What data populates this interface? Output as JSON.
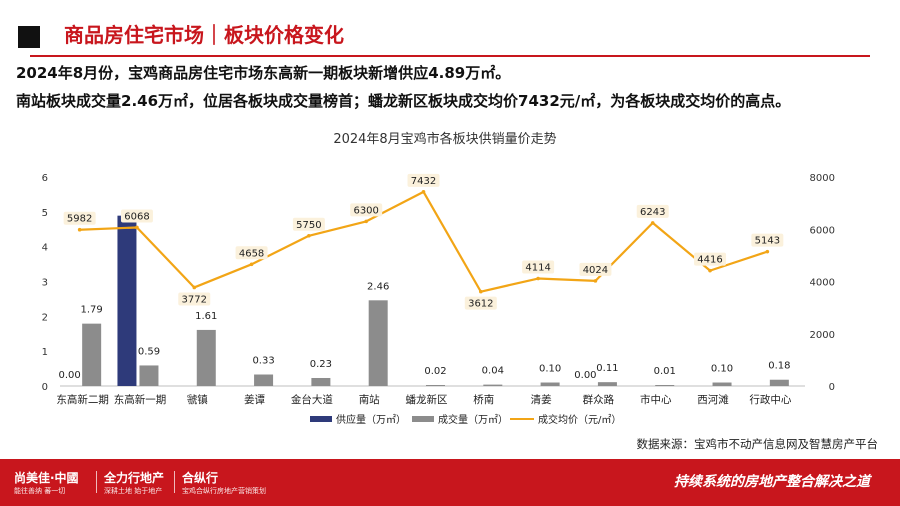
{
  "header": {
    "title": "商品房住宅市场｜板块价格变化"
  },
  "summary": {
    "line1": "2024年8月份，宝鸡商品房住宅市场东高新一期板块新增供应4.89万㎡。",
    "line2": "南站板块成交量2.46万㎡，位居各板块成交量榜首；蟠龙新区板块成交均价7432元/㎡，为各板块成交均价的高点。"
  },
  "source": "数据来源：宝鸡市不动产信息网及智慧房产平台",
  "footer": {
    "brand1": "尚美佳·中國",
    "brand1_sub": "能往善纳 蕃一切",
    "brand2": "全力行地产",
    "brand2_sub": "深耕土地 始于地产",
    "brand3": "合纵行",
    "brand3_sub": "宝鸡合纵行房地产营销策划",
    "slogan": "持续系统的房地产整合解决之道"
  },
  "colors": {
    "accent": "#c8161d",
    "supply": "#2e3a7a",
    "deal": "#8c8c8c",
    "price": "#f2a516"
  },
  "chart_data": {
    "type": "bar",
    "title": "2024年8月宝鸡市各板块供销量价走势",
    "categories": [
      "东高新二期",
      "东高新一期",
      "虢镇",
      "姜谭",
      "金台大道",
      "南站",
      "蟠龙新区",
      "桥南",
      "清姜",
      "群众路",
      "市中心",
      "西河滩",
      "行政中心"
    ],
    "series": [
      {
        "name": "供应量（万㎡）",
        "type": "bar",
        "axis": "left",
        "values": [
          0,
          4.89,
          0,
          0,
          0,
          0,
          0,
          0,
          0,
          0,
          0,
          0,
          0
        ]
      },
      {
        "name": "成交量（万㎡）",
        "type": "bar",
        "axis": "left",
        "values": [
          1.79,
          0.59,
          1.61,
          0.33,
          0.23,
          2.46,
          0.02,
          0.04,
          0.1,
          0.11,
          0.01,
          0.1,
          0.18
        ]
      },
      {
        "name": "成交均价（元/㎡）",
        "type": "line",
        "axis": "right",
        "values": [
          5982,
          6068,
          3772,
          4658,
          5750,
          6300,
          7432,
          3612,
          4114,
          4024,
          6243,
          4416,
          5143
        ]
      }
    ],
    "supply_labels": [
      "0.00",
      "",
      "",
      "",
      "",
      "",
      "",
      "",
      "",
      "0.00",
      "",
      "",
      ""
    ],
    "deal_labels": [
      "1.79",
      "0.59",
      "1.61",
      "0.33",
      "0.23",
      "2.46",
      "0.02",
      "0.04",
      "0.10",
      "0.11",
      "0.01",
      "0.10",
      "0.18"
    ],
    "price_labels": [
      "5982",
      "6068",
      "3772",
      "4658",
      "5750",
      "6300",
      "7432",
      "3612",
      "4114",
      "4024",
      "6243",
      "4416",
      "5143"
    ],
    "y_left_ticks": [
      "0",
      "1",
      "2",
      "3",
      "4",
      "5",
      "6"
    ],
    "y_right_ticks": [
      "0",
      "2000",
      "4000",
      "6000",
      "8000"
    ],
    "ylim_left": [
      0,
      6
    ],
    "ylim_right": [
      0,
      8000
    ],
    "legend_position": "bottom",
    "grid": false
  }
}
